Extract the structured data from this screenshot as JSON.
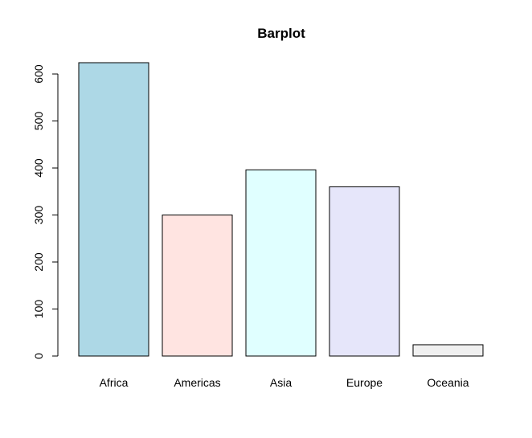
{
  "chart_data": {
    "type": "bar",
    "title": "Barplot",
    "xlabel": "",
    "ylabel": "",
    "categories": [
      "Africa",
      "Americas",
      "Asia",
      "Europe",
      "Oceania"
    ],
    "values": [
      624,
      300,
      396,
      360,
      24
    ],
    "colors": [
      "#add8e6",
      "#ffe4e1",
      "#e0ffff",
      "#e6e6fa",
      "#f0f0f0"
    ],
    "ylim": [
      0,
      624
    ],
    "yticks": [
      0,
      100,
      200,
      300,
      400,
      500,
      600
    ],
    "grid": false,
    "legend": "none"
  }
}
